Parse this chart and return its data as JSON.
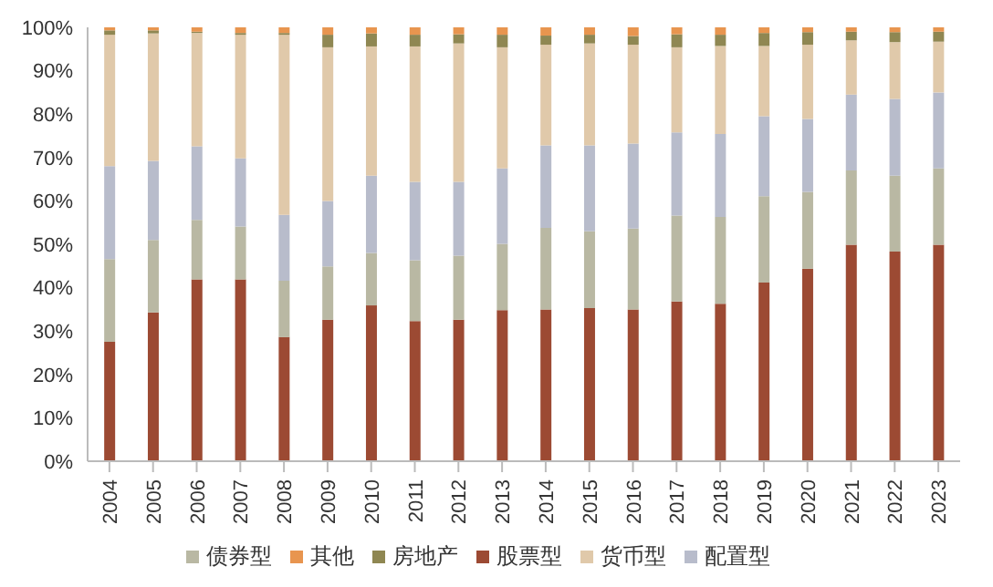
{
  "chart_data": {
    "type": "bar",
    "stacked": true,
    "categories": [
      "2004",
      "2005",
      "2006",
      "2007",
      "2008",
      "2009",
      "2010",
      "2011",
      "2012",
      "2013",
      "2014",
      "2015",
      "2016",
      "2017",
      "2018",
      "2019",
      "2020",
      "2021",
      "2022",
      "2023"
    ],
    "series": [
      {
        "name": "股票型",
        "color": "#9c4a33",
        "values": [
          27.5,
          34.3,
          41.9,
          41.9,
          28.6,
          32.6,
          35.9,
          32.3,
          32.6,
          34.8,
          35.0,
          35.3,
          35.0,
          36.8,
          36.3,
          41.2,
          44.4,
          49.9,
          48.3,
          49.9
        ]
      },
      {
        "name": "债券型",
        "color": "#b9b8a3",
        "values": [
          19.1,
          16.7,
          13.7,
          12.2,
          13.0,
          12.3,
          12.1,
          14.0,
          14.8,
          15.3,
          18.8,
          17.7,
          18.6,
          19.8,
          20.0,
          19.9,
          17.7,
          17.1,
          17.5,
          17.6
        ]
      },
      {
        "name": "配置型",
        "color": "#b8bccb",
        "values": [
          21.4,
          18.2,
          17.0,
          15.7,
          15.2,
          15.1,
          17.8,
          18.1,
          17.0,
          17.4,
          19.0,
          19.8,
          19.6,
          19.2,
          19.1,
          18.4,
          16.8,
          17.5,
          17.7,
          17.5
        ]
      },
      {
        "name": "货币型",
        "color": "#e0c9aa",
        "values": [
          30.3,
          29.4,
          26.1,
          28.5,
          41.5,
          35.4,
          29.8,
          31.2,
          31.9,
          27.9,
          23.2,
          23.5,
          22.8,
          19.6,
          20.3,
          16.2,
          17.1,
          12.5,
          13.1,
          11.7
        ]
      },
      {
        "name": "房地产",
        "color": "#8f8752",
        "values": [
          1.0,
          0.7,
          0.3,
          0.4,
          0.4,
          2.9,
          3.0,
          2.7,
          2.1,
          2.9,
          2.1,
          2.0,
          2.0,
          3.0,
          2.6,
          3.0,
          2.9,
          2.0,
          2.3,
          2.3
        ]
      },
      {
        "name": "其他",
        "color": "#e8954f",
        "values": [
          0.7,
          0.7,
          1.0,
          1.3,
          1.3,
          1.7,
          1.4,
          1.7,
          1.6,
          1.7,
          1.9,
          1.7,
          2.0,
          1.6,
          1.7,
          1.3,
          1.1,
          1.0,
          1.1,
          1.0
        ]
      }
    ],
    "ylim": [
      0,
      100
    ],
    "yticks": [
      {
        "value": 0,
        "label": "0%"
      },
      {
        "value": 10,
        "label": "10%"
      },
      {
        "value": 20,
        "label": "20%"
      },
      {
        "value": 30,
        "label": "30%"
      },
      {
        "value": 40,
        "label": "40%"
      },
      {
        "value": 50,
        "label": "50%"
      },
      {
        "value": 60,
        "label": "60%"
      },
      {
        "value": 70,
        "label": "70%"
      },
      {
        "value": 80,
        "label": "80%"
      },
      {
        "value": 90,
        "label": "90%"
      },
      {
        "value": 100,
        "label": "100%"
      }
    ],
    "grid": false,
    "legend": "bottom"
  }
}
